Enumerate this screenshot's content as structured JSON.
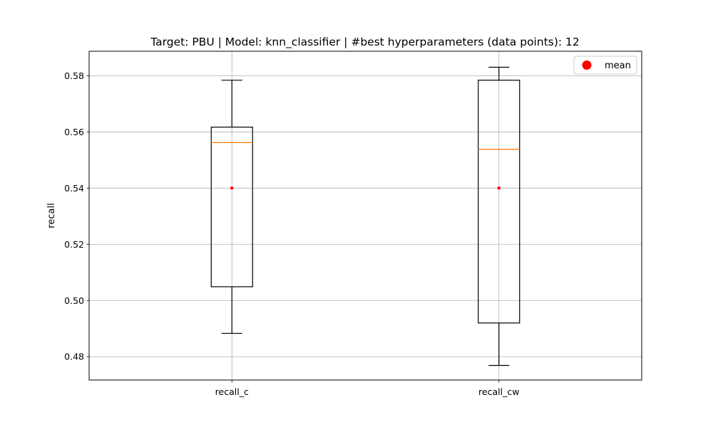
{
  "chart_data": {
    "type": "box",
    "title": "Target: PBU | Model: knn_classifier | #best hyperparameters (data points): 12",
    "xlabel": "",
    "ylabel": "recall",
    "ylim": [
      0.4717,
      0.5887
    ],
    "yticks": [
      0.48,
      0.5,
      0.52,
      0.54,
      0.56,
      0.58
    ],
    "ytick_labels": [
      "0.48",
      "0.50",
      "0.52",
      "0.54",
      "0.56",
      "0.58"
    ],
    "grid": true,
    "legend": {
      "position": "top-right",
      "entries": [
        {
          "label": "mean",
          "color": "#ff0000",
          "marker": "circle"
        }
      ]
    },
    "categories": [
      "recall_c",
      "recall_cw"
    ],
    "boxes": [
      {
        "label": "recall_c",
        "whisker_low": 0.4883,
        "q1": 0.5049,
        "median": 0.5562,
        "q3": 0.5617,
        "whisker_high": 0.5784,
        "mean": 0.54
      },
      {
        "label": "recall_cw",
        "whisker_low": 0.4769,
        "q1": 0.492,
        "median": 0.5538,
        "q3": 0.5784,
        "whisker_high": 0.583,
        "mean": 0.54
      }
    ],
    "colors": {
      "box": "#000000",
      "median": "#ff7f0e",
      "mean": "#ff0000",
      "grid": "#b0b0b0"
    }
  }
}
